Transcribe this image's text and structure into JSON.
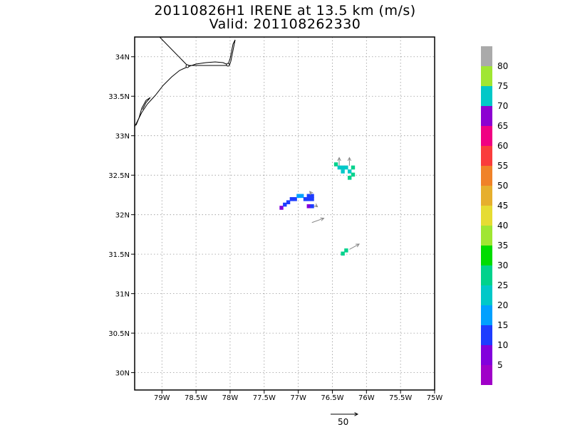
{
  "title": {
    "line1": "20110826H1 IRENE at 13.5 km (m/s)",
    "line2": "Valid: 201108262330"
  },
  "chart_data": {
    "type": "heatmap",
    "title": "20110826H1 IRENE at 13.5 km (m/s)",
    "subtitle": "Valid: 201108262330",
    "xlim": [
      -79.4,
      -75.0
    ],
    "ylim": [
      29.78,
      34.25
    ],
    "x_ticks": [
      {
        "value": -79,
        "label": "79W"
      },
      {
        "value": -78.5,
        "label": "78.5W"
      },
      {
        "value": -78,
        "label": "78W"
      },
      {
        "value": -77.5,
        "label": "77.5W"
      },
      {
        "value": -77,
        "label": "77W"
      },
      {
        "value": -76.5,
        "label": "76.5W"
      },
      {
        "value": -76,
        "label": "76W"
      },
      {
        "value": -75.5,
        "label": "75.5W"
      },
      {
        "value": -75,
        "label": "75W"
      }
    ],
    "y_ticks": [
      {
        "value": 30,
        "label": "30N"
      },
      {
        "value": 30.5,
        "label": "30.5N"
      },
      {
        "value": 31,
        "label": "31N"
      },
      {
        "value": 31.5,
        "label": "31.5N"
      },
      {
        "value": 32,
        "label": "32N"
      },
      {
        "value": 32.5,
        "label": "32.5N"
      },
      {
        "value": 33,
        "label": "33N"
      },
      {
        "value": 33.5,
        "label": "33.5N"
      },
      {
        "value": 34,
        "label": "34N"
      }
    ],
    "grid": true,
    "colorbar": {
      "levels": [
        {
          "label": "",
          "color": "#a000c8"
        },
        {
          "label": "5",
          "color": "#8200dc"
        },
        {
          "label": "10",
          "color": "#1e3cff"
        },
        {
          "label": "15",
          "color": "#00a0ff"
        },
        {
          "label": "20",
          "color": "#00c8c8"
        },
        {
          "label": "25",
          "color": "#00d28c"
        },
        {
          "label": "30",
          "color": "#00dc00"
        },
        {
          "label": "35",
          "color": "#a0e632"
        },
        {
          "label": "40",
          "color": "#e6dc32"
        },
        {
          "label": "45",
          "color": "#e6af2d"
        },
        {
          "label": "50",
          "color": "#f08228"
        },
        {
          "label": "55",
          "color": "#fa3c3c"
        },
        {
          "label": "60",
          "color": "#f00082"
        },
        {
          "label": "65",
          "color": "#8c00d2"
        },
        {
          "label": "70",
          "color": "#00c8c8"
        },
        {
          "label": "75",
          "color": "#a0e632"
        },
        {
          "label": "80",
          "color": "#aaaaaa"
        }
      ]
    },
    "cells": [
      {
        "lon": -77.25,
        "lat": 32.09,
        "value": 8
      },
      {
        "lon": -77.2,
        "lat": 32.13,
        "value": 12
      },
      {
        "lon": -77.15,
        "lat": 32.16,
        "value": 12
      },
      {
        "lon": -77.1,
        "lat": 32.2,
        "value": 12
      },
      {
        "lon": -77.05,
        "lat": 32.2,
        "value": 12
      },
      {
        "lon": -77.0,
        "lat": 32.24,
        "value": 18
      },
      {
        "lon": -76.95,
        "lat": 32.24,
        "value": 18
      },
      {
        "lon": -76.9,
        "lat": 32.2,
        "value": 12
      },
      {
        "lon": -76.85,
        "lat": 32.2,
        "value": 12
      },
      {
        "lon": -76.85,
        "lat": 32.24,
        "value": 12
      },
      {
        "lon": -76.8,
        "lat": 32.24,
        "value": 12
      },
      {
        "lon": -76.8,
        "lat": 32.2,
        "value": 12
      },
      {
        "lon": -76.85,
        "lat": 32.11,
        "value": 8
      },
      {
        "lon": -76.8,
        "lat": 32.11,
        "value": 12
      },
      {
        "lon": -76.45,
        "lat": 32.64,
        "value": 27
      },
      {
        "lon": -76.4,
        "lat": 32.6,
        "value": 22
      },
      {
        "lon": -76.35,
        "lat": 32.6,
        "value": 22
      },
      {
        "lon": -76.35,
        "lat": 32.55,
        "value": 22
      },
      {
        "lon": -76.3,
        "lat": 32.6,
        "value": 22
      },
      {
        "lon": -76.25,
        "lat": 32.55,
        "value": 22
      },
      {
        "lon": -76.2,
        "lat": 32.6,
        "value": 27
      },
      {
        "lon": -76.2,
        "lat": 32.51,
        "value": 27
      },
      {
        "lon": -76.25,
        "lat": 32.47,
        "value": 27
      },
      {
        "lon": -76.35,
        "lat": 31.51,
        "value": 28
      },
      {
        "lon": -76.3,
        "lat": 31.55,
        "value": 28
      }
    ],
    "vectors": [
      {
        "lon": -76.8,
        "lat": 32.26,
        "u": -4,
        "v": 5
      },
      {
        "lon": -76.75,
        "lat": 32.12,
        "u": 4,
        "v": -3
      },
      {
        "lon": -76.4,
        "lat": 32.62,
        "u": 0,
        "v": 15
      },
      {
        "lon": -76.25,
        "lat": 32.62,
        "u": 0,
        "v": 15
      },
      {
        "lon": -76.8,
        "lat": 31.9,
        "u": 22,
        "v": 8
      },
      {
        "lon": -76.25,
        "lat": 31.56,
        "u": 18,
        "v": 10
      }
    ],
    "reference_vector": {
      "label": "50",
      "magnitude": 50
    }
  }
}
